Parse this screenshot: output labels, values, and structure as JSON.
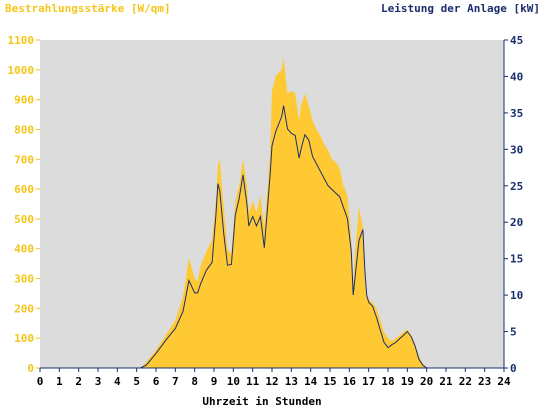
{
  "chart_data": {
    "type": "area",
    "left_axis_title": "Bestrahlungsstärke [W/qm]",
    "right_axis_title": "Leistung der Anlage [kW]",
    "xlabel": "Uhrzeit in Stunden",
    "xlim": [
      0,
      24
    ],
    "x_ticks": [
      "0",
      "1",
      "2",
      "3",
      "4",
      "5",
      "6",
      "7",
      "8",
      "9",
      "10",
      "11",
      "12",
      "13",
      "14",
      "15",
      "16",
      "17",
      "18",
      "19",
      "20",
      "21",
      "22",
      "23",
      "24"
    ],
    "ylim_left": [
      0,
      1100
    ],
    "y_ticks_left": [
      "0",
      "100",
      "200",
      "300",
      "400",
      "500",
      "600",
      "700",
      "800",
      "900",
      "1000",
      "1100"
    ],
    "ylim_right": [
      0,
      45
    ],
    "y_ticks_right": [
      "0",
      "5",
      "10",
      "15",
      "20",
      "25",
      "30",
      "35",
      "40",
      "45"
    ],
    "colors": {
      "irradiance": "#ffc933",
      "power": "#1a2e6e",
      "plot_bg": "#dcdcdc",
      "axis_right": "#1a2e6e"
    },
    "series": [
      {
        "name": "Bestrahlungsstärke [W/qm]",
        "axis": "left",
        "x": [
          0,
          5.2,
          5.5,
          6,
          6.5,
          7,
          7.4,
          7.7,
          8,
          8.15,
          8.3,
          8.6,
          8.9,
          9.1,
          9.2,
          9.3,
          9.5,
          9.7,
          9.9,
          10.1,
          10.3,
          10.5,
          10.7,
          10.8,
          11,
          11.2,
          11.4,
          11.6,
          11.8,
          11.9,
          12,
          12.2,
          12.5,
          12.6,
          12.8,
          13,
          13.2,
          13.4,
          13.5,
          13.7,
          13.9,
          14.1,
          14.3,
          14.5,
          14.7,
          14.9,
          15.1,
          15.3,
          15.5,
          15.7,
          15.9,
          16.1,
          16.2,
          16.3,
          16.5,
          16.7,
          16.8,
          16.9,
          17,
          17.2,
          17.4,
          17.6,
          17.8,
          18,
          18.2,
          18.4,
          18.6,
          18.8,
          19,
          19.2,
          19.4,
          19.6,
          19.8,
          20,
          20.2,
          24
        ],
        "y": [
          0,
          0,
          20,
          60,
          110,
          160,
          240,
          370,
          300,
          290,
          340,
          390,
          430,
          560,
          680,
          700,
          540,
          400,
          380,
          560,
          610,
          700,
          610,
          520,
          560,
          520,
          580,
          470,
          630,
          720,
          930,
          980,
          1000,
          1040,
          920,
          930,
          920,
          830,
          880,
          920,
          880,
          830,
          800,
          780,
          750,
          730,
          700,
          690,
          670,
          610,
          580,
          430,
          280,
          390,
          540,
          470,
          300,
          240,
          230,
          220,
          200,
          160,
          120,
          100,
          90,
          100,
          110,
          120,
          130,
          110,
          80,
          40,
          15,
          0,
          0,
          0
        ]
      },
      {
        "name": "Leistung der Anlage [kW]",
        "axis": "right",
        "x": [
          0,
          5.2,
          5.5,
          6,
          6.5,
          7,
          7.4,
          7.7,
          8,
          8.15,
          8.3,
          8.6,
          8.9,
          9.1,
          9.2,
          9.3,
          9.5,
          9.7,
          9.9,
          10.1,
          10.3,
          10.5,
          10.7,
          10.8,
          11,
          11.2,
          11.4,
          11.6,
          11.8,
          11.9,
          12,
          12.2,
          12.5,
          12.6,
          12.8,
          13,
          13.2,
          13.4,
          13.5,
          13.7,
          13.9,
          14.1,
          14.3,
          14.5,
          14.7,
          14.9,
          15.1,
          15.3,
          15.5,
          15.7,
          15.9,
          16.1,
          16.2,
          16.3,
          16.5,
          16.7,
          16.8,
          16.9,
          17,
          17.2,
          17.4,
          17.6,
          17.8,
          18,
          18.2,
          18.4,
          18.6,
          18.8,
          19,
          19.2,
          19.4,
          19.6,
          19.8,
          20,
          20.2,
          24
        ],
        "y": [
          0,
          0,
          0.4,
          2,
          3.8,
          5.4,
          7.8,
          12,
          10.3,
          10.3,
          11.5,
          13.4,
          14.5,
          21,
          25.3,
          24.3,
          18.5,
          14.1,
          14.2,
          21,
          23.2,
          26.5,
          22.5,
          19.5,
          20.8,
          19.5,
          20.8,
          16.5,
          23,
          26.5,
          30.5,
          32.5,
          34.5,
          36,
          32.8,
          32.2,
          31.9,
          28.8,
          30,
          32,
          31.3,
          29,
          28,
          27,
          26,
          25,
          24.5,
          24,
          23.5,
          22,
          20.5,
          16,
          10,
          12.5,
          17.5,
          19,
          13.5,
          10,
          9,
          8.5,
          7,
          5.2,
          3.5,
          2.8,
          3.2,
          3.5,
          4,
          4.5,
          5,
          4.3,
          3,
          1.2,
          0.4,
          0,
          0,
          0
        ]
      }
    ]
  }
}
